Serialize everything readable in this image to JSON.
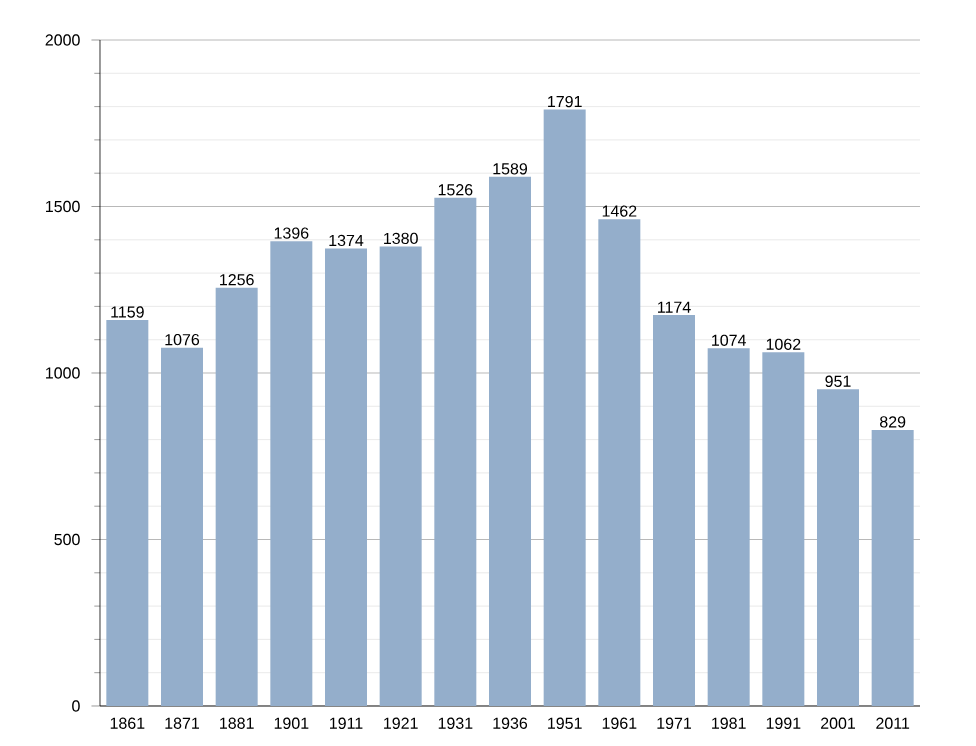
{
  "chart_data": {
    "type": "bar",
    "categories": [
      "1861",
      "1871",
      "1881",
      "1901",
      "1911",
      "1921",
      "1931",
      "1936",
      "1951",
      "1961",
      "1971",
      "1981",
      "1991",
      "2001",
      "2011"
    ],
    "values": [
      1159,
      1076,
      1256,
      1396,
      1374,
      1380,
      1526,
      1589,
      1791,
      1462,
      1174,
      1074,
      1062,
      951,
      829
    ],
    "color": "#94aecb",
    "ylim": [
      0,
      2000
    ],
    "yticks": [
      0,
      500,
      1000,
      1500,
      2000
    ],
    "grid": "y",
    "data_labels": true
  }
}
